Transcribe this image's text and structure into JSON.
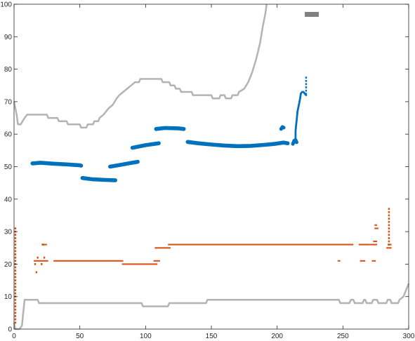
{
  "chart_data": {
    "type": "scatter",
    "xlim": [
      0,
      300
    ],
    "ylim": [
      0,
      100
    ],
    "x_ticks": [
      "0",
      "50",
      "100",
      "150",
      "200",
      "250",
      "300"
    ],
    "y_ticks": [
      "0",
      "10",
      "20",
      "30",
      "40",
      "50",
      "60",
      "70",
      "80",
      "90",
      "100"
    ],
    "grid": false,
    "legend": "top-right",
    "legend_marker_color": "#808080",
    "series": [
      {
        "kind": "line",
        "color": "#b3b3b3",
        "points": [
          [
            0,
            70
          ],
          [
            1,
            68
          ],
          [
            2,
            66
          ],
          [
            3,
            63
          ],
          [
            5,
            63
          ],
          [
            8,
            65
          ],
          [
            10,
            66
          ],
          [
            25,
            66
          ],
          [
            26,
            65
          ],
          [
            33,
            65
          ],
          [
            34,
            64
          ],
          [
            40,
            64
          ],
          [
            41,
            63
          ],
          [
            50,
            63
          ],
          [
            51,
            62
          ],
          [
            55,
            62
          ],
          [
            56,
            63
          ],
          [
            60,
            63
          ],
          [
            61,
            64
          ],
          [
            64,
            64
          ],
          [
            65,
            65
          ],
          [
            68,
            66
          ],
          [
            70,
            67
          ],
          [
            72,
            68
          ],
          [
            75,
            69
          ],
          [
            78,
            71
          ],
          [
            80,
            72
          ],
          [
            83,
            73
          ],
          [
            86,
            74
          ],
          [
            89,
            75
          ],
          [
            92,
            76
          ],
          [
            95,
            76
          ],
          [
            96,
            77
          ],
          [
            112,
            77
          ],
          [
            113,
            76
          ],
          [
            118,
            76
          ],
          [
            119,
            75
          ],
          [
            122,
            75
          ],
          [
            123,
            74
          ],
          [
            126,
            74
          ],
          [
            127,
            73
          ],
          [
            135,
            73
          ],
          [
            136,
            72
          ],
          [
            150,
            72
          ],
          [
            151,
            71
          ],
          [
            156,
            71
          ],
          [
            157,
            72
          ],
          [
            160,
            72
          ],
          [
            161,
            71
          ],
          [
            165,
            71
          ],
          [
            166,
            72
          ],
          [
            170,
            72
          ],
          [
            171,
            73
          ],
          [
            175,
            74
          ],
          [
            178,
            76
          ],
          [
            181,
            79
          ],
          [
            184,
            83
          ],
          [
            187,
            88
          ],
          [
            189,
            93
          ],
          [
            191,
            97
          ],
          [
            192,
            100
          ]
        ]
      },
      {
        "kind": "line",
        "color": "#b3b3b3",
        "points": [
          [
            0,
            2
          ],
          [
            1,
            0
          ],
          [
            4,
            0
          ],
          [
            5,
            0.5
          ],
          [
            6,
            1
          ],
          [
            8,
            9
          ],
          [
            18,
            9
          ],
          [
            19,
            8
          ],
          [
            97,
            8
          ],
          [
            98,
            7
          ],
          [
            117,
            7
          ],
          [
            118,
            8
          ],
          [
            146,
            8
          ],
          [
            147,
            9
          ],
          [
            247,
            9
          ],
          [
            248,
            8
          ],
          [
            255,
            8
          ],
          [
            256,
            9
          ],
          [
            258,
            9
          ],
          [
            259,
            8
          ],
          [
            265,
            8
          ],
          [
            266,
            9
          ],
          [
            267,
            9
          ],
          [
            268,
            8
          ],
          [
            272,
            8
          ],
          [
            273,
            9
          ],
          [
            276,
            9
          ],
          [
            277,
            8
          ],
          [
            283,
            8
          ],
          [
            284,
            9
          ],
          [
            286,
            9
          ],
          [
            287,
            8
          ],
          [
            292,
            8
          ],
          [
            293,
            9
          ],
          [
            296,
            10
          ],
          [
            298,
            12
          ],
          [
            300,
            14
          ]
        ]
      },
      {
        "kind": "band",
        "color": "#0072bd",
        "width": 1.2,
        "points": [
          [
            14,
            51
          ],
          [
            20,
            51.2
          ],
          [
            30,
            50.9
          ],
          [
            40,
            50.7
          ],
          [
            50,
            50.4
          ],
          [
            51,
            50.3
          ]
        ]
      },
      {
        "kind": "band",
        "color": "#0072bd",
        "width": 1.2,
        "points": [
          [
            52,
            46.5
          ],
          [
            60,
            46.1
          ],
          [
            70,
            45.9
          ],
          [
            77,
            45.8
          ]
        ]
      },
      {
        "kind": "band",
        "color": "#0072bd",
        "width": 1.2,
        "points": [
          [
            73,
            50
          ],
          [
            80,
            50.5
          ],
          [
            90,
            51.2
          ],
          [
            94,
            51.5
          ]
        ]
      },
      {
        "kind": "band",
        "color": "#0072bd",
        "width": 1.2,
        "points": [
          [
            90,
            55.8
          ],
          [
            100,
            56.6
          ],
          [
            110,
            57.2
          ]
        ]
      },
      {
        "kind": "band",
        "color": "#0072bd",
        "width": 1.2,
        "points": [
          [
            108,
            61.6
          ],
          [
            115,
            61.9
          ],
          [
            125,
            61.8
          ],
          [
            129,
            61.6
          ]
        ]
      },
      {
        "kind": "band",
        "color": "#0072bd",
        "width": 1.2,
        "points": [
          [
            132,
            57.6
          ],
          [
            140,
            57.2
          ],
          [
            150,
            56.8
          ],
          [
            160,
            56.5
          ],
          [
            170,
            56.3
          ],
          [
            180,
            56.4
          ],
          [
            190,
            56.7
          ],
          [
            198,
            57
          ],
          [
            205,
            57.4
          ],
          [
            208,
            57.2
          ]
        ]
      },
      {
        "kind": "band",
        "color": "#0072bd",
        "width": 1.1,
        "points": [
          [
            212,
            57
          ],
          [
            213,
            58
          ],
          [
            214,
            58.2
          ],
          [
            214.8,
            57.5
          ]
        ]
      },
      {
        "kind": "band",
        "color": "#0072bd",
        "width": 1.1,
        "points": [
          [
            203,
            61.6
          ],
          [
            204,
            62.2
          ],
          [
            205,
            62
          ]
        ]
      },
      {
        "kind": "band",
        "color": "#0072bd",
        "width": 0.6,
        "points": [
          [
            214,
            58
          ],
          [
            214,
            61
          ],
          [
            214.5,
            63
          ],
          [
            215,
            65
          ],
          [
            215.5,
            67
          ],
          [
            216.5,
            69
          ],
          [
            217.5,
            71
          ],
          [
            218,
            72.5
          ],
          [
            219,
            73
          ],
          [
            220,
            73
          ],
          [
            221,
            72.5
          ],
          [
            222,
            72
          ]
        ]
      },
      {
        "kind": "dots",
        "color": "#0072bd",
        "size": 1.2,
        "points": [
          [
            222,
            72.4
          ],
          [
            222,
            73.4
          ],
          [
            222,
            74.4
          ],
          [
            222,
            75.4
          ],
          [
            222,
            76.4
          ],
          [
            222,
            77.4
          ]
        ]
      },
      {
        "kind": "dots",
        "color": "#d95319",
        "size": 1.2,
        "points": [
          [
            1,
            2
          ],
          [
            1,
            3
          ],
          [
            1,
            4
          ],
          [
            1,
            5
          ],
          [
            1,
            6
          ],
          [
            1,
            7
          ],
          [
            1,
            8
          ],
          [
            1,
            9
          ],
          [
            1,
            10
          ],
          [
            1,
            11
          ],
          [
            1,
            12
          ],
          [
            1,
            13
          ],
          [
            1,
            14
          ],
          [
            1,
            15
          ],
          [
            1,
            16
          ],
          [
            1,
            17
          ],
          [
            1,
            18
          ],
          [
            1,
            19
          ],
          [
            1,
            20
          ],
          [
            1,
            21
          ],
          [
            1,
            22
          ],
          [
            1,
            23
          ],
          [
            1,
            24
          ],
          [
            1,
            25
          ],
          [
            1,
            26
          ],
          [
            1,
            27
          ],
          [
            1,
            28
          ],
          [
            1,
            29
          ],
          [
            1,
            30
          ],
          [
            1,
            31
          ],
          [
            17,
            17.5
          ],
          [
            16,
            20
          ],
          [
            18,
            22
          ],
          [
            21,
            20
          ],
          [
            22,
            26
          ],
          [
            23,
            22
          ],
          [
            285,
            26
          ],
          [
            285,
            27
          ],
          [
            285,
            28
          ],
          [
            285,
            29
          ],
          [
            285,
            30
          ],
          [
            285,
            31
          ],
          [
            285,
            32
          ],
          [
            285,
            33
          ],
          [
            285,
            34
          ],
          [
            285,
            35
          ],
          [
            285,
            36
          ],
          [
            285,
            37
          ]
        ]
      },
      {
        "kind": "segments",
        "color": "#d95319",
        "width": 0.45,
        "segments": [
          [
            15,
            21,
            26,
            21
          ],
          [
            21,
            26,
            25,
            26
          ],
          [
            30,
            21,
            83,
            21
          ],
          [
            82,
            20,
            109,
            20
          ],
          [
            106,
            21,
            111,
            21
          ],
          [
            107,
            25,
            119,
            25
          ],
          [
            117,
            26,
            258,
            26
          ],
          [
            246,
            21,
            248,
            21
          ],
          [
            262,
            26,
            271,
            26
          ],
          [
            263,
            21,
            267,
            21
          ],
          [
            271,
            26,
            276,
            26
          ],
          [
            272,
            21,
            275,
            21
          ],
          [
            273,
            27,
            276,
            27
          ],
          [
            274,
            31,
            277,
            31
          ],
          [
            274,
            32,
            276,
            32
          ],
          [
            283,
            25,
            287,
            25
          ],
          [
            284,
            26,
            287,
            26
          ]
        ]
      }
    ]
  }
}
